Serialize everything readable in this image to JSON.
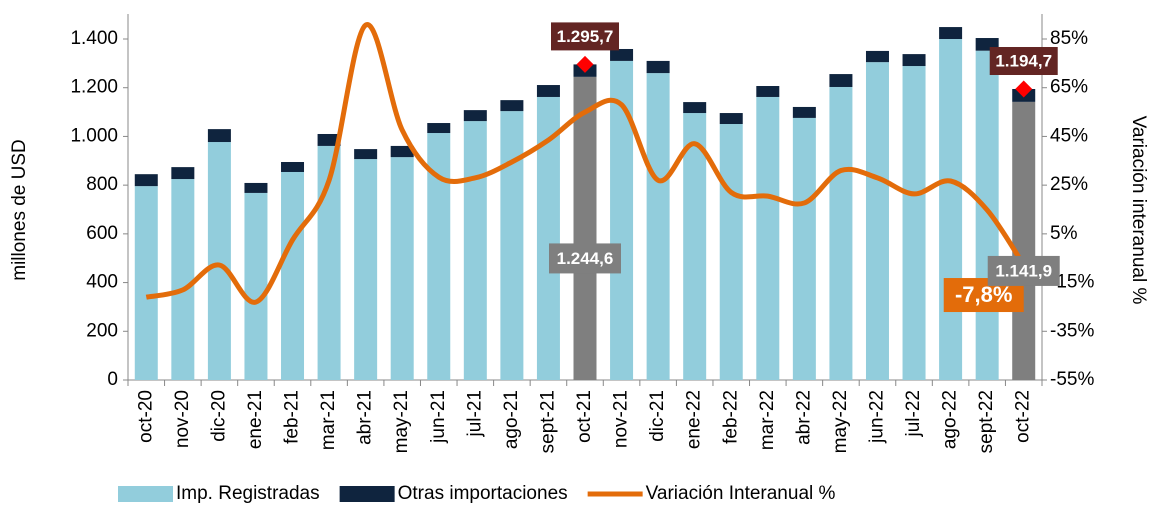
{
  "chart_data": {
    "type": "bar-line",
    "ylabel": "millones de  USD",
    "y2label": "Variación interanual %",
    "categories": [
      "oct-20",
      "nov-20",
      "dic-20",
      "ene-21",
      "feb-21",
      "mar-21",
      "abr-21",
      "may-21",
      "jun-21",
      "jul-21",
      "ago-21",
      "sept-21",
      "oct-21",
      "nov-21",
      "dic-21",
      "ene-22",
      "feb-22",
      "mar-22",
      "abr-22",
      "may-22",
      "jun-22",
      "jul-22",
      "ago-22",
      "sept-22",
      "oct-22"
    ],
    "series": [
      {
        "name": "Imp. Registradas",
        "type": "bar",
        "color": "#92cddc",
        "values": [
          796,
          825,
          977,
          768,
          854,
          961,
          907,
          915,
          1014,
          1063,
          1104,
          1162,
          1244.6,
          1310,
          1260,
          1096,
          1051,
          1162,
          1076,
          1203,
          1305,
          1289,
          1400,
          1352,
          1141.9
        ],
        "value_labels": [
          null,
          null,
          null,
          null,
          null,
          null,
          null,
          null,
          null,
          null,
          null,
          null,
          "1.244,6",
          null,
          null,
          null,
          null,
          null,
          null,
          null,
          null,
          null,
          null,
          null,
          "1.141,9"
        ]
      },
      {
        "name": "Otras importaciones",
        "type": "bar",
        "color": "#0f243e",
        "values": [
          49,
          49,
          53,
          41,
          41,
          49,
          41,
          46,
          41,
          45,
          45,
          49,
          51.1,
          49,
          50,
          45,
          45,
          45,
          45,
          53,
          46,
          49,
          49,
          52,
          52.8
        ]
      },
      {
        "name": "Variación Interanual %",
        "type": "line",
        "axis": "y2",
        "color": "#e36c0a",
        "values": [
          -21,
          -18,
          -7.8,
          -23,
          2.5,
          27,
          90.7,
          47.6,
          28.3,
          28,
          34.5,
          43.5,
          55,
          58,
          27,
          42,
          22,
          20.5,
          17.7,
          31,
          28,
          21.4,
          26.7,
          14.8,
          -7.8
        ],
        "value_labels": [
          null,
          null,
          null,
          null,
          null,
          null,
          null,
          null,
          null,
          null,
          null,
          null,
          null,
          null,
          null,
          null,
          null,
          null,
          null,
          null,
          null,
          null,
          null,
          null,
          "-7,8%"
        ]
      }
    ],
    "highlight": [
      "oct-21",
      "oct-22"
    ],
    "highlight_color": "#7f7f7f",
    "annotations": [
      {
        "category": "oct-21",
        "value": 1295.7,
        "text": "1.295,7"
      },
      {
        "category": "oct-22",
        "value": 1194.7,
        "text": "1.194,7"
      }
    ],
    "annotation_color": "#632523",
    "marker_color": "#ff0000",
    "ylim": [
      0,
      1400
    ],
    "yticks": [
      0,
      200,
      400,
      600,
      800,
      {
        "value": 1000,
        "label": "1.000"
      },
      {
        "value": 1200,
        "label": "1.200"
      },
      {
        "value": 1400,
        "label": "1.400"
      }
    ],
    "y2lim": [
      -55,
      85
    ],
    "y2ticks": [
      {
        "value": -55,
        "label": "-55%"
      },
      {
        "value": -35,
        "label": "-35%"
      },
      {
        "value": -15,
        "label": "-15%"
      },
      {
        "value": 5,
        "label": "5%"
      },
      {
        "value": 25,
        "label": "25%"
      },
      {
        "value": 45,
        "label": "45%"
      },
      {
        "value": 65,
        "label": "65%"
      },
      {
        "value": 85,
        "label": "85%"
      }
    ],
    "legend": "bottom"
  }
}
